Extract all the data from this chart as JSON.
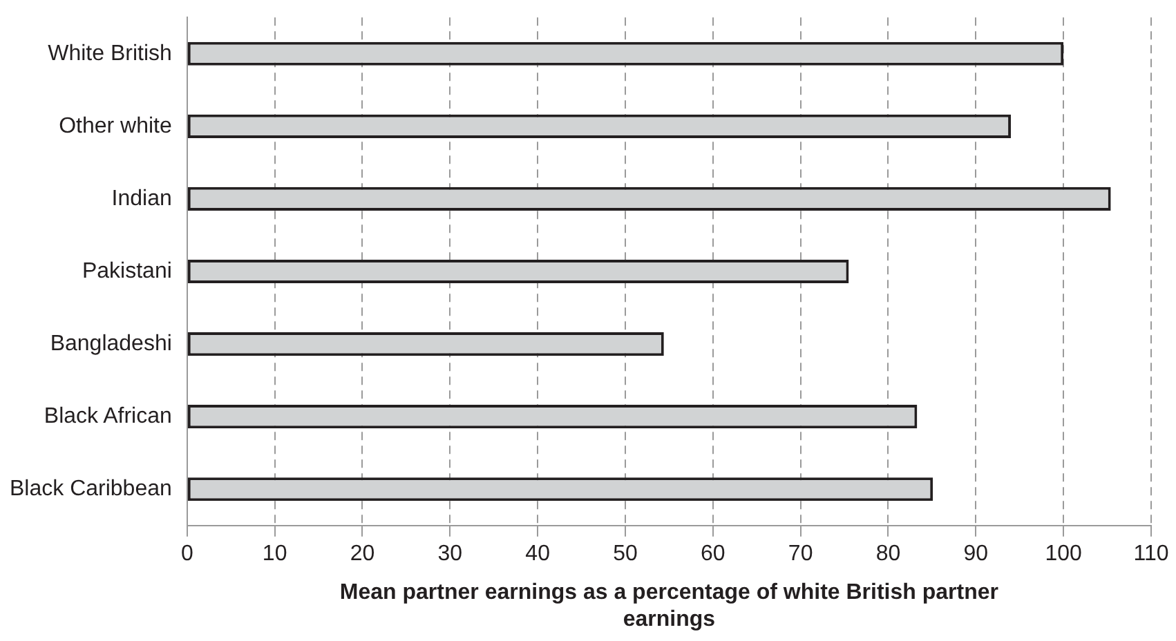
{
  "chart_data": {
    "type": "bar",
    "orientation": "horizontal",
    "categories": [
      "White British",
      "Other white",
      "Indian",
      "Pakistani",
      "Bangladeshi",
      "Black African",
      "Black Caribbean"
    ],
    "values": [
      100,
      94,
      105.4,
      75.5,
      54.4,
      83.3,
      85.1
    ],
    "color": "#d1d3d4",
    "xlabel": "Mean partner earnings as a percentage of white British partner earnings",
    "xlim": [
      0,
      110
    ],
    "xticks": [
      0,
      10,
      20,
      30,
      40,
      50,
      60,
      70,
      80,
      90,
      100,
      110
    ],
    "grid": "x",
    "legend": false
  }
}
